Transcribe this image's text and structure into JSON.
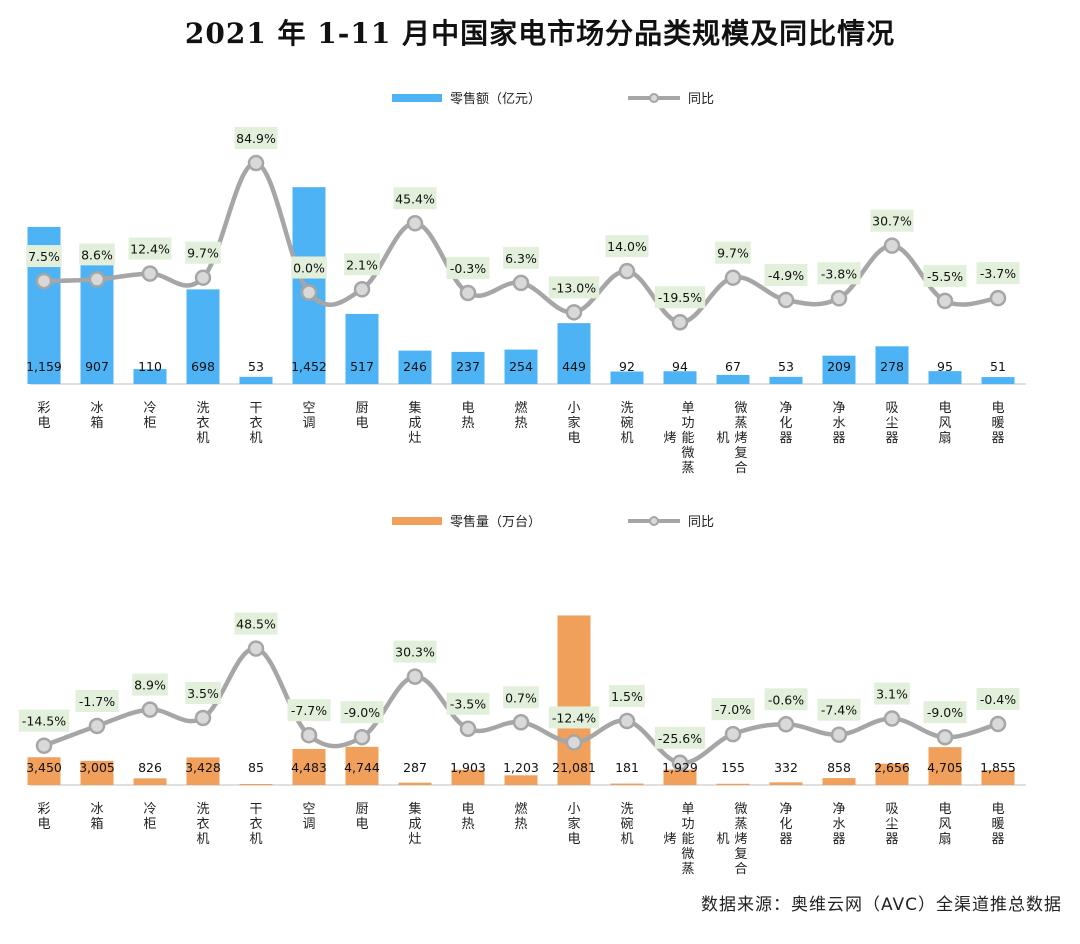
{
  "title": "2021 年 1-11 月中国家电市场分品类规模及同比情况",
  "source_note": "数据来源：奥维云网（AVC）全渠道推总数据",
  "colors": {
    "bar_top": "#4db3f5",
    "bar_bottom": "#f0a05a",
    "line": "#a6a6a6",
    "marker_fill": "#d9d9d9",
    "label_bg": "#e2efda",
    "axis": "#bfbfbf"
  },
  "chart_data": [
    {
      "type": "bar",
      "title": "",
      "legend": {
        "bar": "零售额（亿元）",
        "line": "同比",
        "position": "top-center"
      },
      "categories": [
        "彩电",
        "冰箱",
        "冷柜",
        "洗衣机",
        "干衣机",
        "空调",
        "厨电",
        "集成灶",
        "电热",
        "燃热",
        "小家电",
        "洗碗机",
        "单功能微蒸烤",
        "微蒸烤复合机",
        "净化器",
        "净水器",
        "吸尘器",
        "电风扇",
        "电暖器"
      ],
      "series": [
        {
          "name": "零售额（亿元）",
          "kind": "bar",
          "values": [
            1159,
            907,
            110,
            698,
            53,
            1452,
            517,
            246,
            237,
            254,
            449,
            92,
            94,
            67,
            53,
            209,
            278,
            95,
            51
          ],
          "labels": [
            "1,159",
            "907",
            "110",
            "698",
            "53",
            "1,452",
            "517",
            "246",
            "237",
            "254",
            "449",
            "92",
            "94",
            "67",
            "53",
            "209",
            "278",
            "95",
            "51"
          ]
        },
        {
          "name": "同比",
          "kind": "line",
          "values": [
            7.5,
            8.6,
            12.4,
            9.7,
            84.9,
            0.0,
            2.1,
            45.4,
            -0.3,
            6.3,
            -13.0,
            14.0,
            -19.5,
            9.7,
            -4.9,
            -3.8,
            30.7,
            -5.5,
            -3.7
          ],
          "labels": [
            "7.5%",
            "8.6%",
            "12.4%",
            "9.7%",
            "84.9%",
            "0.0%",
            "2.1%",
            "45.4%",
            "-0.3%",
            "6.3%",
            "-13.0%",
            "14.0%",
            "-19.5%",
            "9.7%",
            "-4.9%",
            "-3.8%",
            "30.7%",
            "-5.5%",
            "-3.7%"
          ]
        }
      ],
      "bar_ylim": [
        0,
        1800
      ],
      "line_ylim": [
        -60,
        100
      ]
    },
    {
      "type": "bar",
      "title": "",
      "legend": {
        "bar": "零售量（万台）",
        "line": "同比",
        "position": "top-center"
      },
      "categories": [
        "彩电",
        "冰箱",
        "冷柜",
        "洗衣机",
        "干衣机",
        "空调",
        "厨电",
        "集成灶",
        "电热",
        "燃热",
        "小家电",
        "洗碗机",
        "单功能微蒸烤",
        "微蒸烤复合机",
        "净化器",
        "净水器",
        "吸尘器",
        "电风扇",
        "电暖器"
      ],
      "series": [
        {
          "name": "零售量（万台）",
          "kind": "bar",
          "values": [
            3450,
            3005,
            826,
            3428,
            85,
            4483,
            4744,
            287,
            1903,
            1203,
            21081,
            181,
            1929,
            155,
            332,
            858,
            2656,
            4705,
            1855
          ],
          "labels": [
            "3,450",
            "3,005",
            "826",
            "3,428",
            "85",
            "4,483",
            "4,744",
            "287",
            "1,903",
            "1,203",
            "21,081",
            "181",
            "1,929",
            "155",
            "332",
            "858",
            "2,656",
            "4,705",
            "1,855"
          ]
        },
        {
          "name": "同比",
          "kind": "line",
          "values": [
            -14.5,
            -1.7,
            8.9,
            3.5,
            48.5,
            -7.7,
            -9.0,
            30.3,
            -3.5,
            0.7,
            -12.4,
            1.5,
            -25.6,
            -7.0,
            -0.6,
            -7.4,
            3.1,
            -9.0,
            -0.4
          ],
          "labels": [
            "-14.5%",
            "-1.7%",
            "8.9%",
            "3.5%",
            "48.5%",
            "-7.7%",
            "-9.0%",
            "30.3%",
            "-3.5%",
            "0.7%",
            "-12.4%",
            "1.5%",
            "-25.6%",
            "-7.0%",
            "-0.6%",
            "-7.4%",
            "3.1%",
            "-9.0%",
            "-0.4%"
          ]
        }
      ],
      "bar_ylim": [
        0,
        23000
      ],
      "line_ylim": [
        -40,
        80
      ]
    }
  ]
}
